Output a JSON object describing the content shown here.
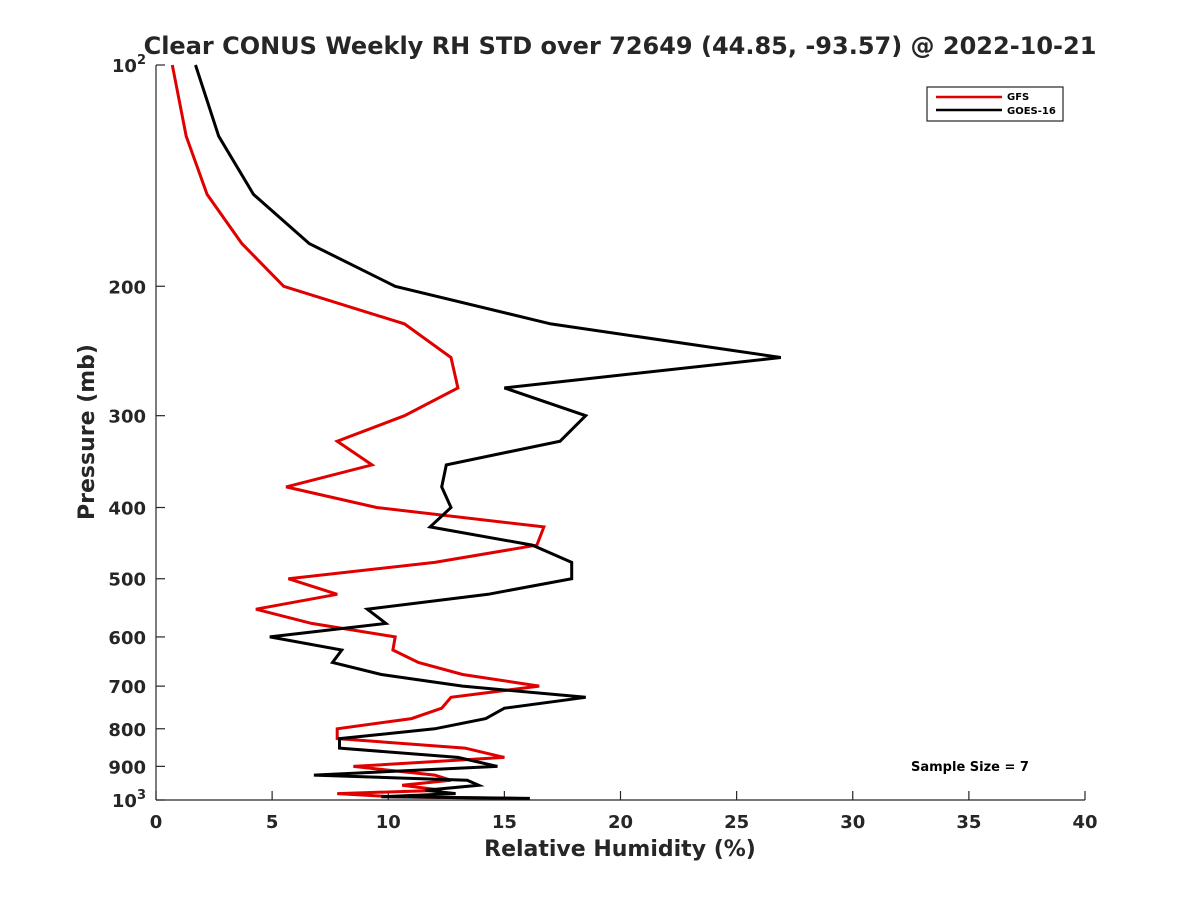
{
  "chart_data": {
    "type": "line",
    "title": "Clear CONUS Weekly RH STD over 72649 (44.85, -93.57) @ 2022-10-21",
    "xlabel": "Relative Humidity (%)",
    "ylabel": "Pressure (mb)",
    "xlim": [
      0,
      40
    ],
    "ylim": [
      100,
      1000
    ],
    "yscale": "log",
    "y_reversed": true,
    "grid": false,
    "legend_position": "top-right",
    "x_ticks": [
      "0",
      "5",
      "10",
      "15",
      "20",
      "25",
      "30",
      "35",
      "40"
    ],
    "y_ticks": [
      {
        "value": 100,
        "base": "10",
        "exp": "2"
      },
      {
        "value": 200,
        "label": "200"
      },
      {
        "value": 300,
        "label": "300"
      },
      {
        "value": 400,
        "label": "400"
      },
      {
        "value": 500,
        "label": "500"
      },
      {
        "value": 600,
        "label": "600"
      },
      {
        "value": 700,
        "label": "700"
      },
      {
        "value": 800,
        "label": "800"
      },
      {
        "value": 900,
        "label": "900"
      },
      {
        "value": 1000,
        "base": "10",
        "exp": "3"
      }
    ],
    "annotation": "Sample Size = 7",
    "series": [
      {
        "name": "GFS",
        "color": "#e00000",
        "points": [
          [
            0.7,
            100
          ],
          [
            1.3,
            125
          ],
          [
            2.2,
            150
          ],
          [
            3.7,
            175
          ],
          [
            5.5,
            200
          ],
          [
            10.7,
            225
          ],
          [
            12.7,
            250
          ],
          [
            13.0,
            275
          ],
          [
            10.7,
            300
          ],
          [
            7.8,
            325
          ],
          [
            9.3,
            350
          ],
          [
            5.6,
            375
          ],
          [
            9.5,
            400
          ],
          [
            16.7,
            425
          ],
          [
            16.4,
            450
          ],
          [
            12.0,
            475
          ],
          [
            5.7,
            500
          ],
          [
            7.8,
            525
          ],
          [
            4.3,
            550
          ],
          [
            6.7,
            575
          ],
          [
            10.3,
            600
          ],
          [
            10.2,
            625
          ],
          [
            11.3,
            650
          ],
          [
            13.2,
            675
          ],
          [
            16.5,
            700
          ],
          [
            12.7,
            725
          ],
          [
            12.3,
            750
          ],
          [
            11.0,
            775
          ],
          [
            7.8,
            800
          ],
          [
            7.8,
            825
          ],
          [
            13.3,
            850
          ],
          [
            15.0,
            875
          ],
          [
            8.5,
            900
          ],
          [
            12.0,
            925
          ],
          [
            12.7,
            940
          ],
          [
            10.6,
            955
          ],
          [
            12.3,
            970
          ],
          [
            7.8,
            980
          ],
          [
            10.2,
            990
          ],
          [
            15.5,
            995
          ]
        ]
      },
      {
        "name": "GOES-16",
        "color": "#000000",
        "points": [
          [
            1.7,
            100
          ],
          [
            2.7,
            125
          ],
          [
            4.2,
            150
          ],
          [
            6.6,
            175
          ],
          [
            10.3,
            200
          ],
          [
            17.0,
            225
          ],
          [
            26.9,
            250
          ],
          [
            15.0,
            275
          ],
          [
            18.5,
            300
          ],
          [
            17.4,
            325
          ],
          [
            12.5,
            350
          ],
          [
            12.3,
            375
          ],
          [
            12.7,
            400
          ],
          [
            11.8,
            425
          ],
          [
            16.2,
            450
          ],
          [
            17.9,
            475
          ],
          [
            17.9,
            500
          ],
          [
            14.3,
            525
          ],
          [
            9.1,
            550
          ],
          [
            9.9,
            575
          ],
          [
            4.9,
            600
          ],
          [
            8.0,
            625
          ],
          [
            7.6,
            650
          ],
          [
            9.7,
            675
          ],
          [
            13.2,
            700
          ],
          [
            18.5,
            725
          ],
          [
            15.0,
            750
          ],
          [
            14.2,
            775
          ],
          [
            12.0,
            800
          ],
          [
            7.9,
            825
          ],
          [
            7.9,
            850
          ],
          [
            13.0,
            875
          ],
          [
            14.7,
            900
          ],
          [
            6.8,
            925
          ],
          [
            13.4,
            940
          ],
          [
            13.9,
            955
          ],
          [
            11.6,
            970
          ],
          [
            12.9,
            980
          ],
          [
            9.7,
            990
          ],
          [
            16.1,
            995
          ]
        ]
      }
    ]
  }
}
